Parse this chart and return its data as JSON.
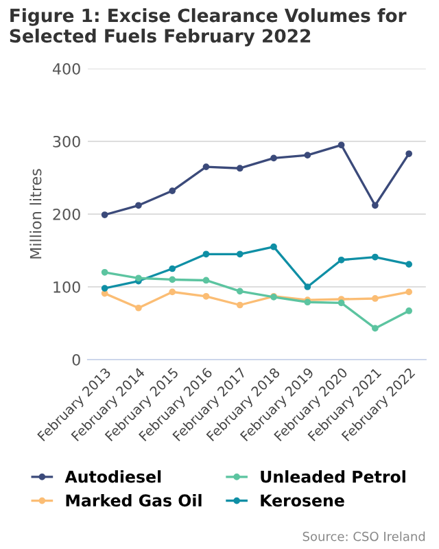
{
  "chart_data": {
    "type": "line",
    "title": "Figure 1: Excise Clearance Volumes for Selected Fuels February 2022",
    "ylabel": "Million litres",
    "categories": [
      "February 2013",
      "February 2014",
      "February 2015",
      "February 2016",
      "February 2017",
      "February 2018",
      "February 2019",
      "February 2020",
      "February 2021",
      "February 2022"
    ],
    "series": [
      {
        "name": "Autodiesel",
        "color": "#3b4a7a",
        "values": [
          199,
          212,
          232,
          265,
          263,
          277,
          281,
          295,
          212,
          283
        ]
      },
      {
        "name": "Unleaded Petrol",
        "color": "#5cc4a0",
        "values": [
          120,
          112,
          110,
          109,
          94,
          86,
          79,
          78,
          43,
          67
        ]
      },
      {
        "name": "Marked Gas Oil",
        "color": "#fbbd74",
        "values": [
          91,
          71,
          93,
          87,
          75,
          87,
          82,
          83,
          84,
          93
        ]
      },
      {
        "name": "Kerosene",
        "color": "#0f8fa5",
        "values": [
          98,
          108,
          125,
          145,
          145,
          155,
          100,
          137,
          141,
          131
        ]
      }
    ],
    "ylim": [
      0,
      400
    ],
    "yticks": [
      0,
      100,
      200,
      300,
      400
    ],
    "grid": "y",
    "legend": "bottom",
    "marker": "circle",
    "annotations": [
      "Source: CSO Ireland"
    ]
  }
}
